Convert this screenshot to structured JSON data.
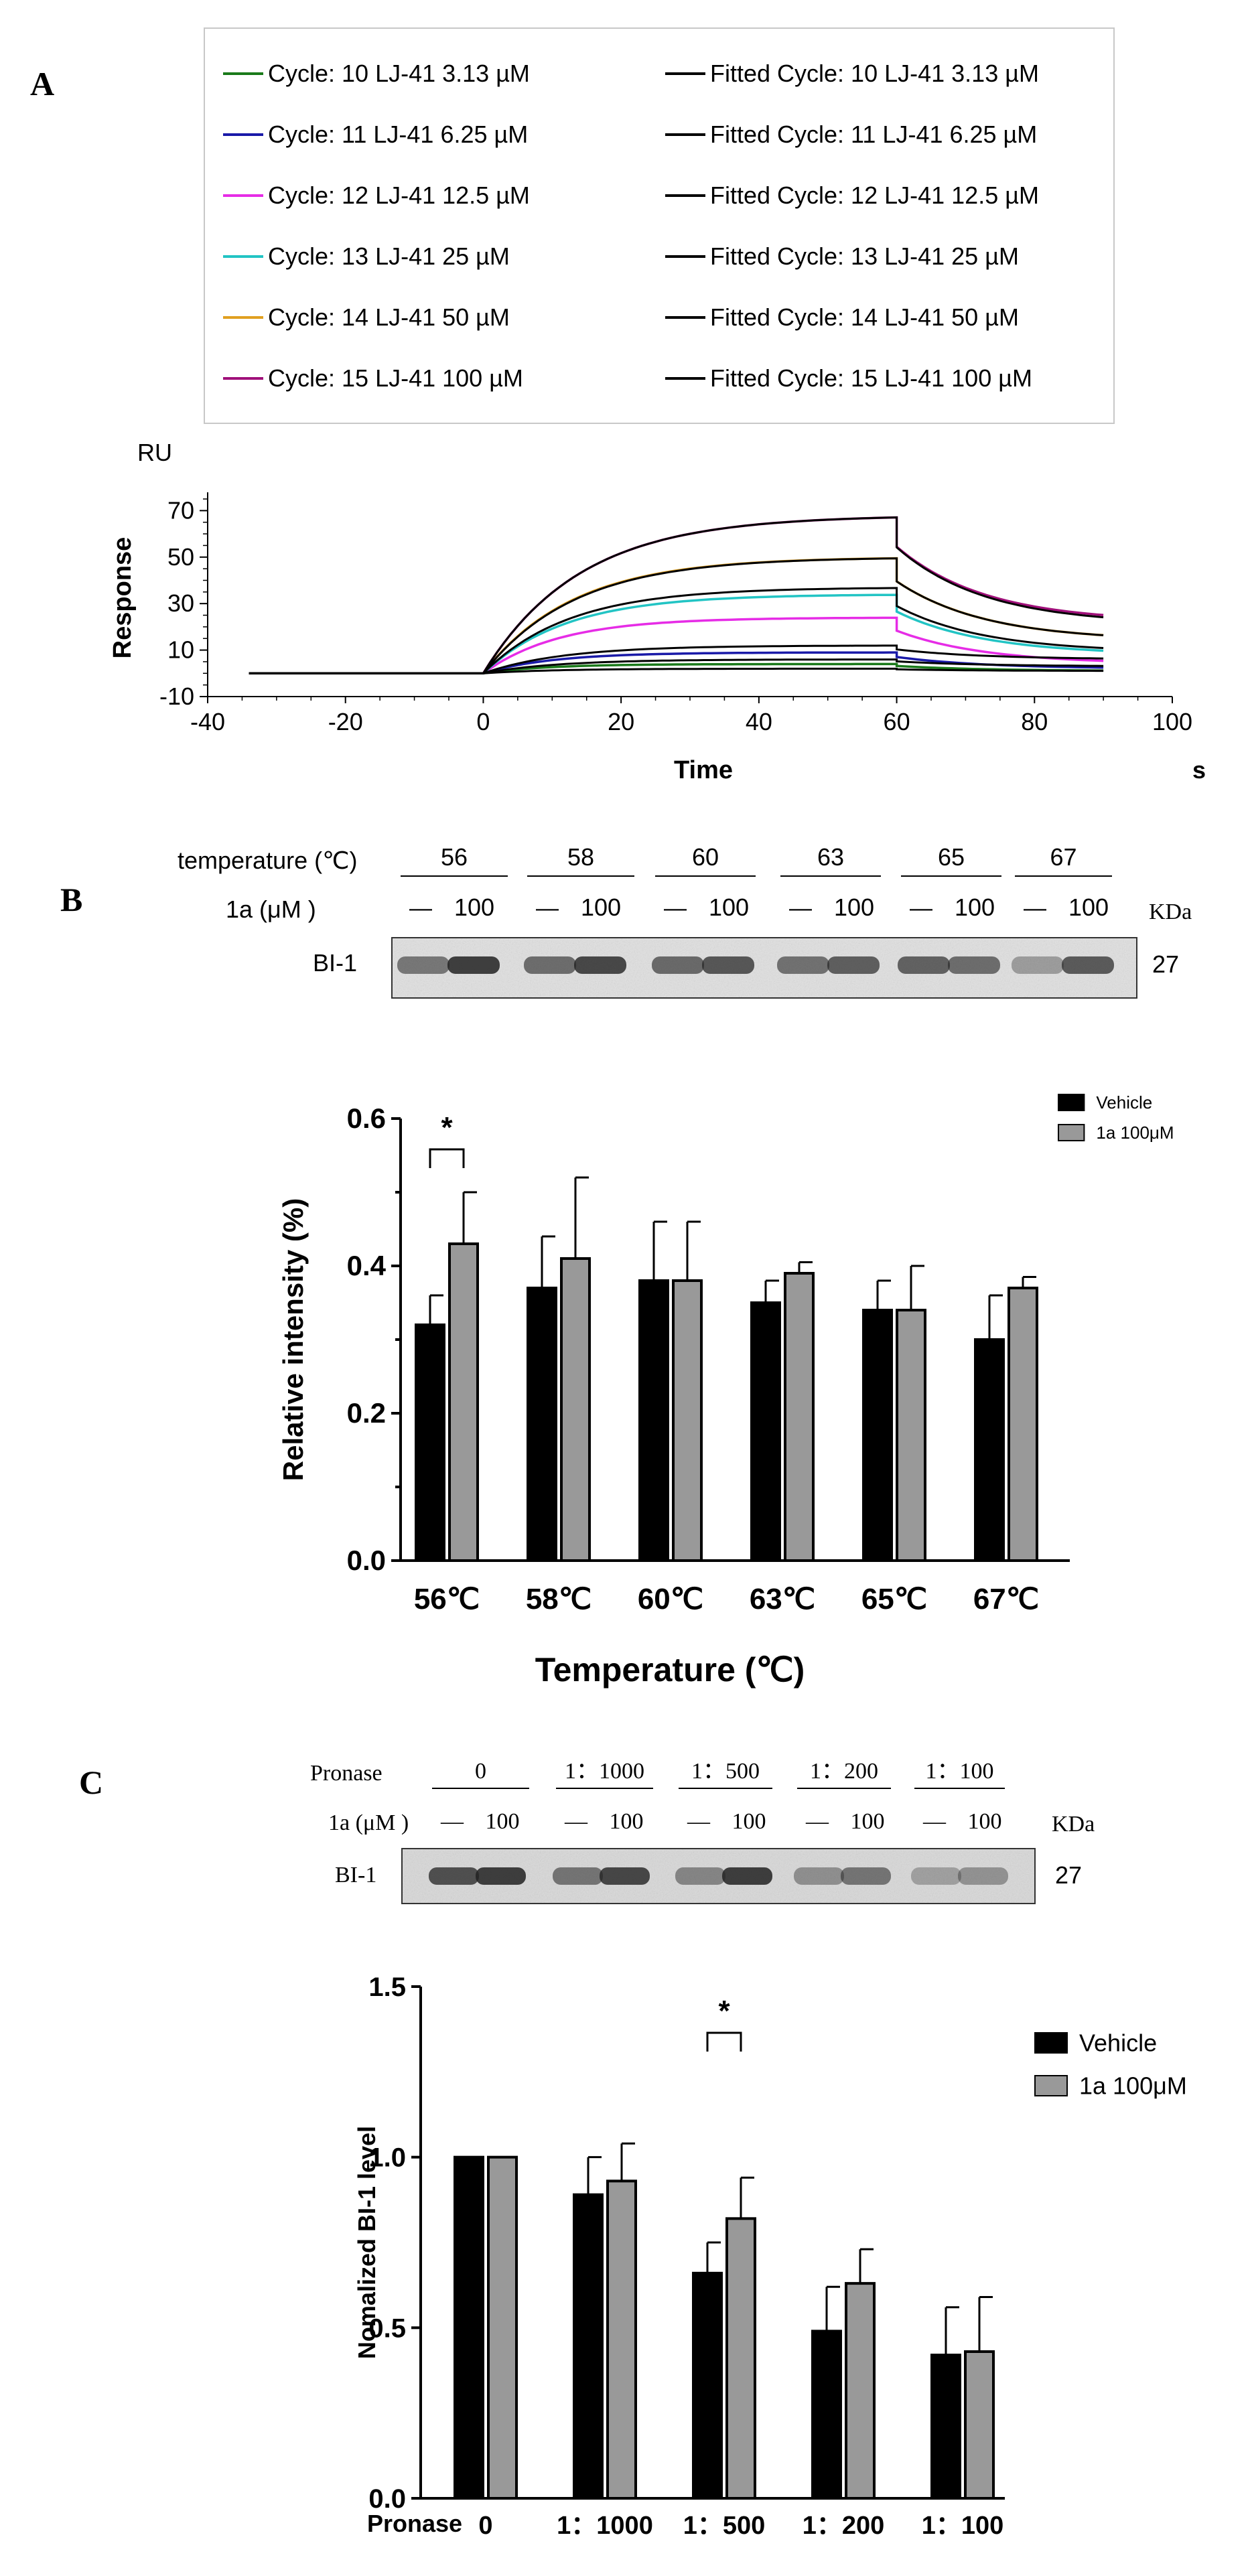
{
  "panel_labels": {
    "a": "A",
    "b": "B",
    "c": "C"
  },
  "colors": {
    "green": "#1a7a1a",
    "blue": "#1a1aa8",
    "magenta": "#e62ce6",
    "cyan": "#22c4c4",
    "orange": "#e0a020",
    "purple": "#a0107a",
    "black": "#000000",
    "gray": "#999999"
  },
  "panel_a": {
    "legend": [
      {
        "label": "Cycle: 10  LJ-41  3.13 µM",
        "color": "#1a7a1a"
      },
      {
        "label": "Cycle: 11  LJ-41  6.25 µM",
        "color": "#1a1aa8"
      },
      {
        "label": "Cycle: 12  LJ-41  12.5 µM",
        "color": "#e62ce6"
      },
      {
        "label": "Cycle: 13  LJ-41  25 µM",
        "color": "#22c4c4"
      },
      {
        "label": "Cycle: 14  LJ-41  50 µM",
        "color": "#e0a020"
      },
      {
        "label": "Cycle: 15  LJ-41  100 µM",
        "color": "#a0107a"
      }
    ],
    "legend_fitted": [
      "Fitted Cycle: 10  LJ-41  3.13 µM",
      "Fitted Cycle: 11  LJ-41  6.25 µM",
      "Fitted Cycle: 12  LJ-41  12.5 µM",
      "Fitted Cycle: 13  LJ-41  25 µM",
      "Fitted Cycle: 14  LJ-41  50 µM",
      "Fitted Cycle: 15  LJ-41  100 µM"
    ],
    "unit_label": "RU",
    "time_unit": "s"
  },
  "panel_b": {
    "row_temp_label": "temperature (℃)",
    "row_conc_label": "1a (μM )",
    "temps": [
      "56",
      "58",
      "60",
      "63",
      "65",
      "67"
    ],
    "dash": "—",
    "conc": "100",
    "kda": "KDa",
    "band_label": "BI-1",
    "mw": "27",
    "sig": "*"
  },
  "panel_c": {
    "row_label": "Pronase",
    "row_conc_label": "1a (μM )",
    "ratios": [
      "0",
      "1：1000",
      "1：500",
      "1：200",
      "1：100"
    ],
    "dash": "—",
    "conc": "100",
    "kda": "KDa",
    "band_label": "BI-1",
    "mw": "27",
    "sig": "*"
  },
  "chart_data": [
    {
      "type": "line",
      "title": "",
      "xlabel": "Time",
      "ylabel": "Response",
      "xlim": [
        -40,
        100
      ],
      "ylim": [
        -10,
        75
      ],
      "xticks": [
        -40,
        -20,
        0,
        20,
        40,
        60,
        80,
        100
      ],
      "yticks": [
        -10,
        10,
        30,
        50,
        70
      ],
      "baseline_start": -34,
      "injection_end": 60,
      "end_time": 90,
      "series": [
        {
          "name": "Cycle: 10  LJ-41  3.13 µM",
          "plateau": 4,
          "end": 1,
          "color": "#1a7a1a"
        },
        {
          "name": "Cycle: 11  LJ-41  6.25 µM",
          "plateau": 9,
          "end": 2,
          "color": "#1a1aa8"
        },
        {
          "name": "Cycle: 12  LJ-41  12.5 µM",
          "plateau": 24,
          "end": 4,
          "color": "#e62ce6"
        },
        {
          "name": "Cycle: 13  LJ-41  25 µM",
          "plateau": 34,
          "end": 8,
          "color": "#22c4c4"
        },
        {
          "name": "Cycle: 14  LJ-41  50 µM",
          "plateau": 50,
          "end": 14,
          "color": "#e0a020"
        },
        {
          "name": "Cycle: 15  LJ-41  100 µM",
          "plateau": 68,
          "end": 22,
          "color": "#a0107a"
        }
      ],
      "fitted_plateaus": [
        2,
        6,
        12,
        37,
        50,
        68
      ],
      "fitted_ends": [
        1,
        3,
        6,
        9,
        14,
        21
      ]
    },
    {
      "type": "bar",
      "title": "",
      "xlabel": "Temperature (℃)",
      "ylabel": "Relative intensity (%)",
      "ylim": [
        0,
        0.6
      ],
      "yticks": [
        "0.0",
        "0.2",
        "0.4",
        "0.6"
      ],
      "categories": [
        "56℃",
        "58℃",
        "60℃",
        "63℃",
        "65℃",
        "67℃"
      ],
      "series": [
        {
          "name": "Vehicle",
          "values": [
            0.32,
            0.37,
            0.38,
            0.35,
            0.34,
            0.3
          ],
          "errors": [
            0.04,
            0.07,
            0.08,
            0.03,
            0.04,
            0.06
          ],
          "color": "#000000"
        },
        {
          "name": "1a 100μM",
          "values": [
            0.43,
            0.41,
            0.38,
            0.39,
            0.34,
            0.37
          ],
          "errors": [
            0.07,
            0.11,
            0.08,
            0.015,
            0.06,
            0.015
          ],
          "color": "#999999"
        }
      ],
      "legend_position": "top-right"
    },
    {
      "type": "bar",
      "title": "",
      "xlabel": "Pronase",
      "ylabel": "Nomalized BI-1 level",
      "ylim": [
        0,
        1.5
      ],
      "yticks": [
        "0.0",
        "0.5",
        "1.0",
        "1.5"
      ],
      "categories": [
        "0",
        "1：1000",
        "1：500",
        "1：200",
        "1：100"
      ],
      "series": [
        {
          "name": "Vehicle",
          "values": [
            1.0,
            0.89,
            0.66,
            0.49,
            0.42
          ],
          "errors": [
            0.0,
            0.11,
            0.09,
            0.13,
            0.14
          ],
          "color": "#000000"
        },
        {
          "name": "1a 100μM",
          "values": [
            1.0,
            0.93,
            0.82,
            0.63,
            0.43
          ],
          "errors": [
            0.0,
            0.11,
            0.12,
            0.1,
            0.16
          ],
          "color": "#999999"
        }
      ],
      "legend_position": "top-right"
    }
  ]
}
